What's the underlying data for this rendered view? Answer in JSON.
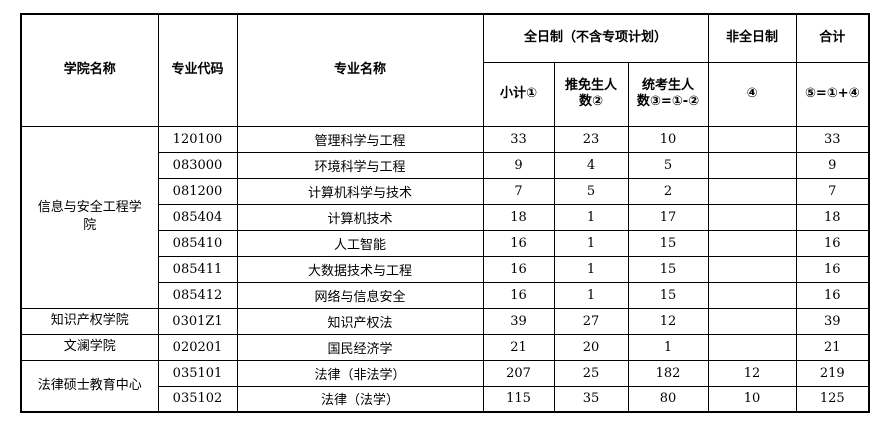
{
  "table": {
    "header": {
      "college": "学院名称",
      "code": "专业代码",
      "major": "专业名称",
      "fulltime": "全日制（不含专项计划）",
      "parttime": "非全日制",
      "total": "合计",
      "subtotal": "小计①",
      "recommended": "推免生人数②",
      "exam": "统考生人数③=①-②",
      "parttime_no": "④",
      "total_formula": "⑤=①+④"
    },
    "groups": [
      {
        "college": "信息与安全工程学院",
        "rows": [
          [
            "120100",
            "管理科学与工程",
            33,
            23,
            10,
            null,
            33
          ],
          [
            "083000",
            "环境科学与工程",
            9,
            4,
            5,
            null,
            9
          ],
          [
            "081200",
            "计算机科学与技术",
            7,
            5,
            2,
            null,
            7
          ],
          [
            "085404",
            "计算机技术",
            18,
            1,
            17,
            null,
            18
          ],
          [
            "085410",
            "人工智能",
            16,
            1,
            15,
            null,
            16
          ],
          [
            "085411",
            "大数据技术与工程",
            16,
            1,
            15,
            null,
            16
          ],
          [
            "085412",
            "网络与信息安全",
            16,
            1,
            15,
            null,
            16
          ]
        ]
      },
      {
        "college": "知识产权学院",
        "rows": [
          [
            "0301Z1",
            "知识产权法",
            39,
            27,
            12,
            null,
            39
          ]
        ]
      },
      {
        "college": "文澜学院",
        "rows": [
          [
            "020201",
            "国民经济学",
            21,
            20,
            1,
            null,
            21
          ]
        ]
      },
      {
        "college": "法律硕士教育中心",
        "rows": [
          [
            "035101",
            "法律（非法学）",
            207,
            25,
            182,
            12,
            219
          ],
          [
            "035102",
            "法律（法学）",
            115,
            35,
            80,
            10,
            125
          ]
        ]
      }
    ]
  }
}
